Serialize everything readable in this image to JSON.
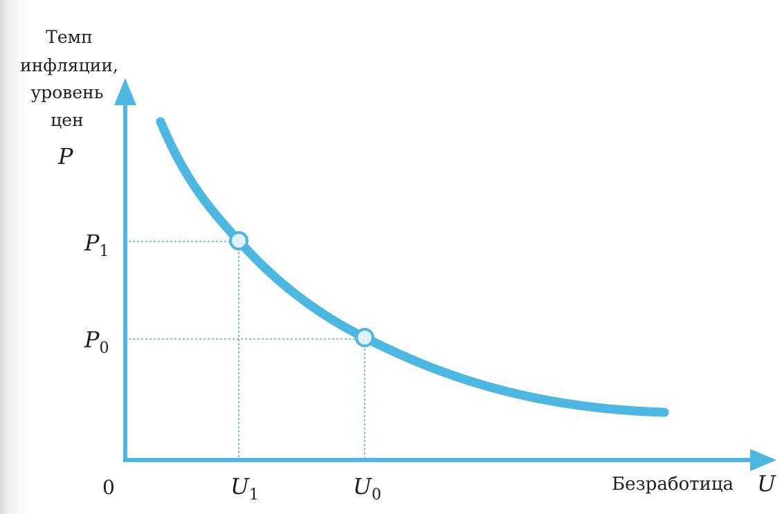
{
  "diagram": {
    "y_axis": {
      "title_lines": [
        "Темп",
        "инфляции,",
        "уровень",
        "цен"
      ],
      "symbol": "P"
    },
    "x_axis": {
      "title": "Безработица",
      "symbol": "U"
    },
    "origin_label": "0",
    "marked_points": [
      {
        "p_label": "P",
        "p_sub": "1",
        "u_label": "U",
        "u_sub": "1"
      },
      {
        "p_label": "P",
        "p_sub": "0",
        "u_label": "U",
        "u_sub": "0"
      }
    ],
    "colors": {
      "curve": "#4cb8e2",
      "axis": "#4cb8e2",
      "guide": "#4cb8e2",
      "point_fill": "#dff2fb",
      "text": "#1f1f1f"
    }
  }
}
